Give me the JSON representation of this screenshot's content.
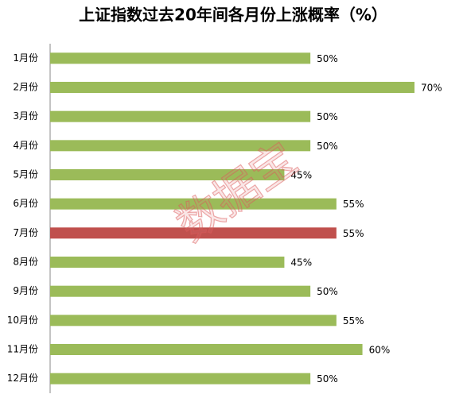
{
  "chart_data": {
    "type": "bar",
    "orientation": "horizontal",
    "title": "上证指数过去20年间各月份上涨概率（%）",
    "categories": [
      "1月份",
      "2月份",
      "3月份",
      "4月份",
      "5月份",
      "6月份",
      "7月份",
      "8月份",
      "9月份",
      "10月份",
      "11月份",
      "12月份"
    ],
    "values": [
      50,
      70,
      50,
      50,
      45,
      55,
      55,
      45,
      50,
      55,
      60,
      50
    ],
    "value_labels": [
      "50%",
      "70%",
      "50%",
      "50%",
      "45%",
      "55%",
      "55%",
      "45%",
      "50%",
      "55%",
      "60%",
      "50%"
    ],
    "colors": [
      "#9bbb59",
      "#9bbb59",
      "#9bbb59",
      "#9bbb59",
      "#9bbb59",
      "#9bbb59",
      "#c0504d",
      "#9bbb59",
      "#9bbb59",
      "#9bbb59",
      "#9bbb59",
      "#9bbb59"
    ],
    "watermark": "数据宝"
  }
}
